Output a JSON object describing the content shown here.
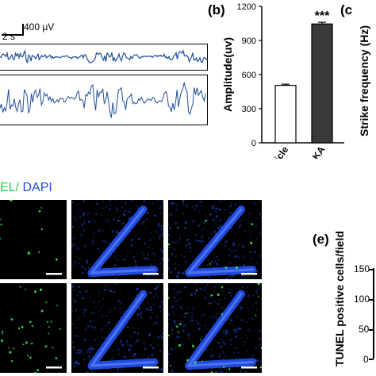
{
  "panel_a": {
    "scale_voltage": "400 μV",
    "scale_time": "2 s",
    "trace_color": "#1f4e99"
  },
  "panel_b": {
    "letter": "(b)"
  },
  "panel_c": {
    "letter": "(c",
    "ylabel": "Strike frequency (Hz)"
  },
  "panel_d": {
    "label_tunel": "EL/",
    "label_dapi": " DAPI",
    "tunel_color": "#2fd14a",
    "dapi_color": "#1e4fd6"
  },
  "panel_e": {
    "letter": "(e)",
    "ylabel": "TUNEL positive cells/field",
    "ticks": [
      "150",
      "100",
      "50",
      "0"
    ]
  },
  "chart_data": {
    "type": "bar",
    "title": "",
    "categories": [
      "Vehicle",
      "KA"
    ],
    "values": [
      505,
      1045
    ],
    "errors": [
      10,
      15
    ],
    "bar_colors": [
      "#ffffff",
      "#3a3a3a"
    ],
    "ylabel": "Amplitude(uv)",
    "ylim": [
      0,
      1200
    ],
    "yticks": [
      "0",
      "300",
      "600",
      "900",
      "1200"
    ],
    "significance": "***"
  }
}
